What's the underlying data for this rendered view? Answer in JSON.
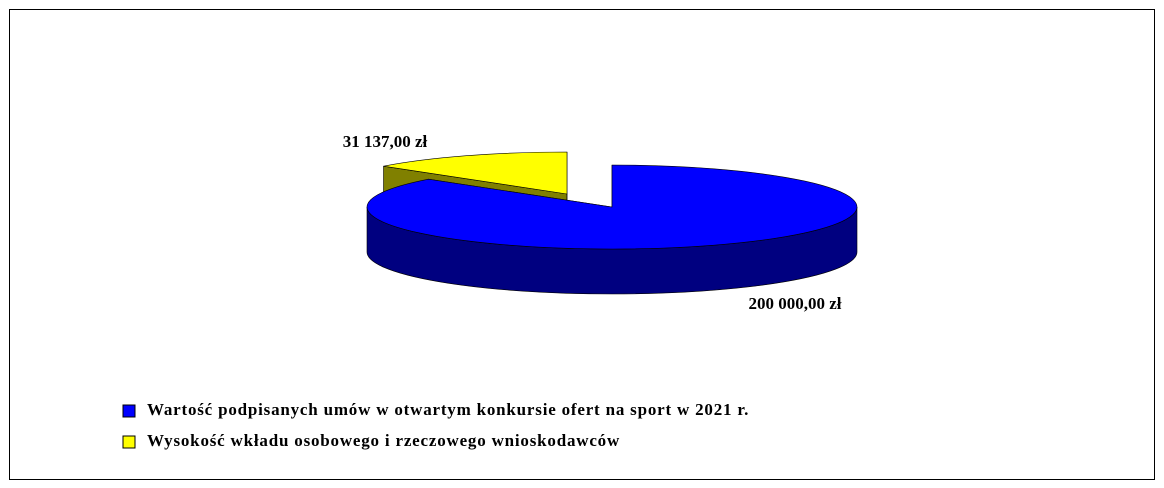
{
  "chart_data": {
    "type": "pie",
    "categories": [
      "Wartość podpisanych umów w otwartym konkursie ofert na sport w 2021 r.",
      "Wysokość wkładu osobowego i rzeczowego wnioskodawców"
    ],
    "values": [
      200000,
      31137
    ],
    "value_labels": [
      "200 000,00 zł",
      "31 137,00 zł"
    ],
    "colors": [
      "#0000ff",
      "#ffff00"
    ],
    "legend": "bottom"
  }
}
